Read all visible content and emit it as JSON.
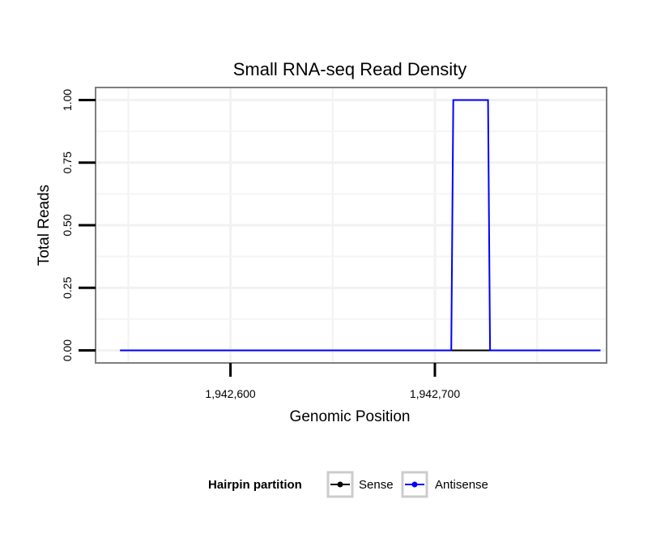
{
  "chart_data": {
    "type": "line",
    "title": "Small RNA-seq Read Density",
    "xlabel": "Genomic Position",
    "ylabel": "Total Reads",
    "xlim": [
      1942534,
      1942784
    ],
    "ylim": [
      -0.05,
      1.05
    ],
    "x_ticks": [
      1942600,
      1942700
    ],
    "x_tick_labels": [
      "1,942,600",
      "1,942,700"
    ],
    "x_minor_ticks": [
      1942550,
      1942650,
      1942750
    ],
    "y_ticks": [
      0,
      0.25,
      0.5,
      0.75,
      1.0
    ],
    "y_tick_labels": [
      "0.00",
      "0.25",
      "0.50",
      "0.75",
      "1.00"
    ],
    "grid": true,
    "legend": {
      "title": "Hairpin partition",
      "position": "bottom",
      "entries": [
        "Sense",
        "Antisense"
      ]
    },
    "series": [
      {
        "name": "Sense",
        "color": "#000000",
        "x": [
          1942546,
          1942781
        ],
        "y": [
          0,
          0
        ]
      },
      {
        "name": "Antisense",
        "color": "#0000ff",
        "x": [
          1942546,
          1942708,
          1942709,
          1942726,
          1942727,
          1942781
        ],
        "y": [
          0,
          0,
          1,
          1,
          0,
          0
        ]
      }
    ]
  }
}
